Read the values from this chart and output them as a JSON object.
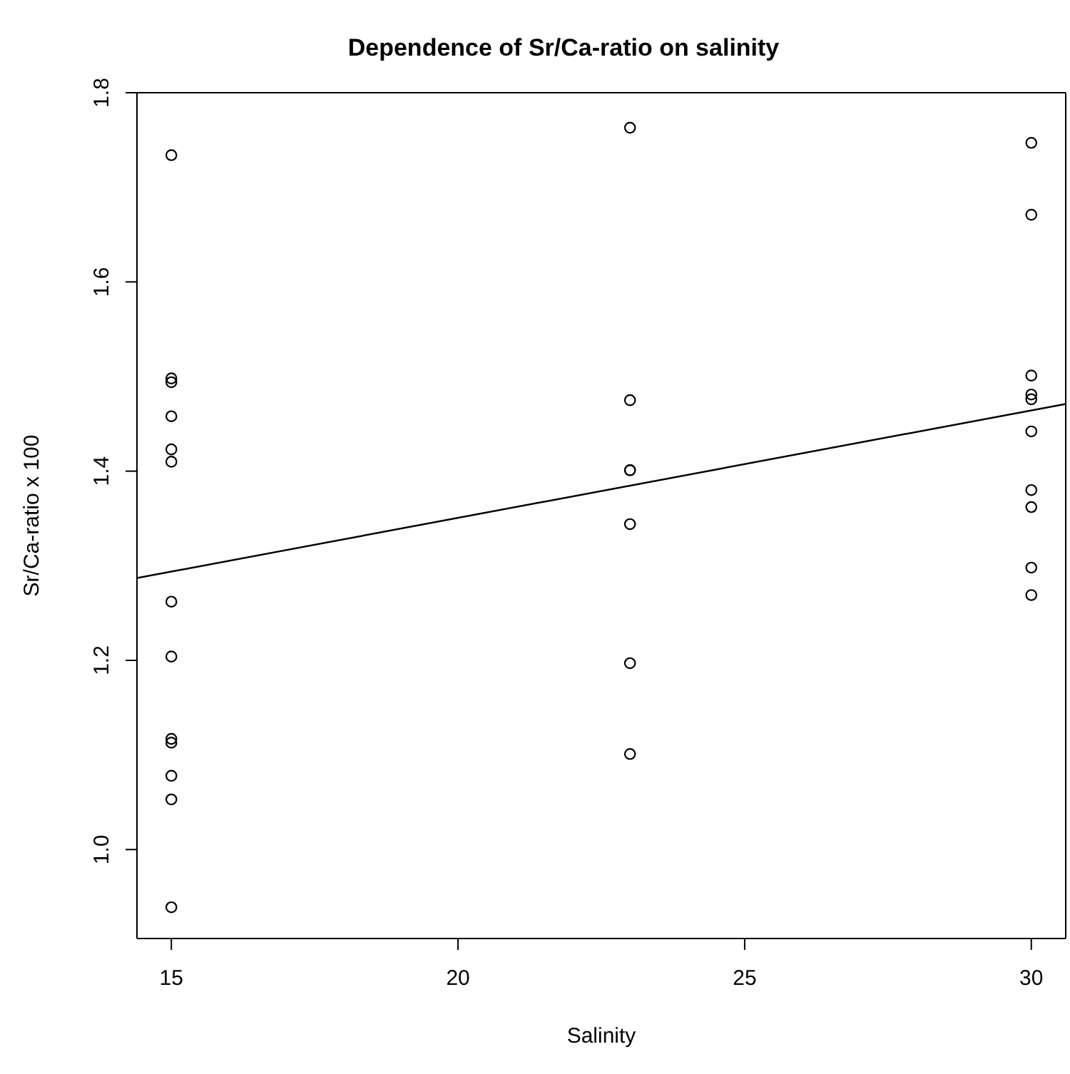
{
  "chart_data": {
    "type": "scatter",
    "title": "Dependence of Sr/Ca-ratio on salinity",
    "xlabel": "Salinity",
    "ylabel": "Sr/Ca-ratio x 100",
    "xlim": [
      14.4,
      30.6
    ],
    "ylim": [
      0.906,
      1.8
    ],
    "xticks": [
      15,
      20,
      25,
      30
    ],
    "yticks": [
      {
        "value": 1.0,
        "label": "1.0"
      },
      1.2,
      1.4,
      1.6,
      1.8
    ],
    "grid": false,
    "legend": false,
    "marker": "circle",
    "series": [
      {
        "type": "scatter",
        "color": "#000000",
        "x": [
          15,
          15,
          15,
          15,
          15,
          15,
          15,
          15,
          15,
          15,
          15,
          15,
          15,
          23,
          23,
          23,
          23,
          23,
          23,
          23,
          30,
          30,
          30,
          30,
          30,
          30,
          30,
          30,
          30,
          30
        ],
        "values": [
          1.734,
          1.498,
          1.494,
          1.458,
          1.423,
          1.41,
          1.262,
          1.204,
          1.117,
          1.113,
          1.078,
          1.053,
          0.939,
          1.763,
          1.475,
          1.401,
          1.401,
          1.344,
          1.197,
          1.101,
          1.747,
          1.671,
          1.501,
          1.481,
          1.476,
          1.442,
          1.38,
          1.362,
          1.298,
          1.269
        ]
      },
      {
        "type": "line",
        "color": "#000000",
        "line_style": "solid",
        "marker": "none",
        "x": [
          14.4,
          30.6
        ],
        "values": [
          1.287,
          1.471
        ]
      }
    ]
  }
}
